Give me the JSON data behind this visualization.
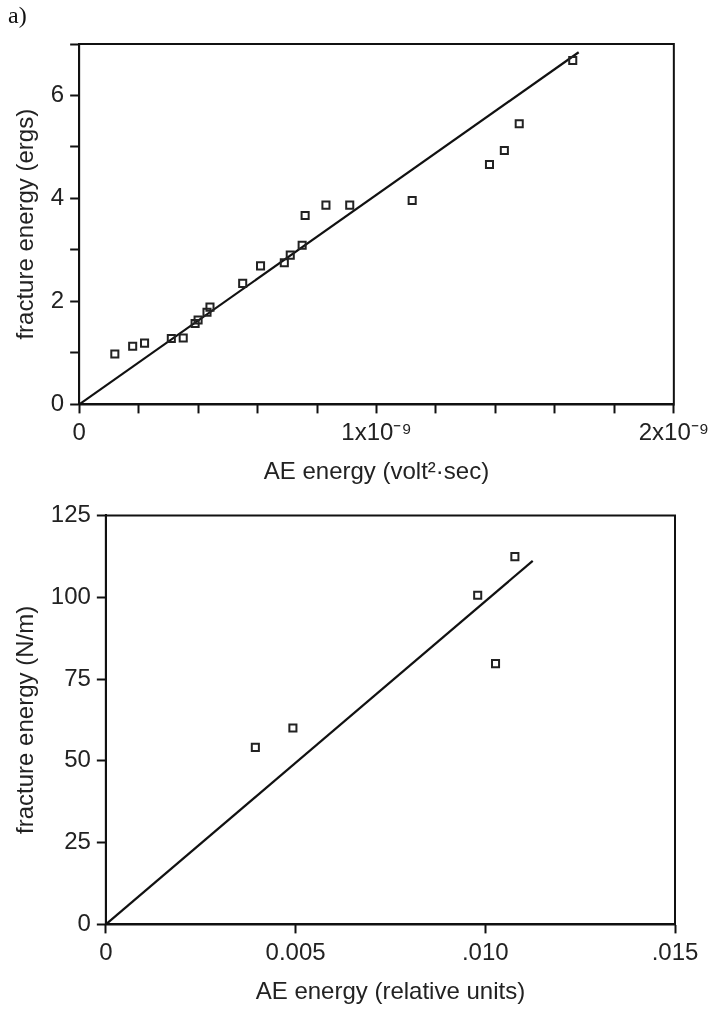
{
  "chart_data": [
    {
      "type": "scatter",
      "xlabel": "AE energy (volt²·sec)",
      "ylabel": "fracture energy (ergs)",
      "annotations": [
        "a)"
      ],
      "xlim": [
        0,
        2e-09
      ],
      "ylim": [
        0,
        7
      ],
      "xticks": [
        0,
        {
          "value": 2e-10,
          "label": null
        },
        {
          "value": 4e-10,
          "label": null
        },
        {
          "value": 6e-10,
          "label": null
        },
        {
          "value": 8e-10,
          "label": null
        },
        {
          "value": 1e-09,
          "label": "1x10⁻⁹"
        },
        {
          "value": 1.2e-09,
          "label": null
        },
        {
          "value": 1.4e-09,
          "label": null
        },
        {
          "value": 1.6e-09,
          "label": null
        },
        {
          "value": 1.8e-09,
          "label": null
        },
        {
          "value": 2e-09,
          "label": "2x10⁻⁹"
        }
      ],
      "yticks": [
        0,
        {
          "value": 1,
          "label": null
        },
        2,
        {
          "value": 3,
          "label": null
        },
        4,
        {
          "value": 5,
          "label": null
        },
        6,
        {
          "value": 7,
          "label": null
        }
      ],
      "grid": false,
      "legend": false,
      "series": [
        {
          "marker": "square",
          "color": "#222222",
          "x": [
            1.2e-10,
            1.8e-10,
            2.2e-10,
            3.1e-10,
            3.5e-10,
            3.9e-10,
            4e-10,
            4.3e-10,
            4.4e-10,
            5.5e-10,
            6.1e-10,
            6.9e-10,
            7.1e-10,
            7.5e-10,
            7.6e-10,
            8.3e-10,
            9.1e-10,
            1.12e-09,
            1.38e-09,
            1.43e-09,
            1.48e-09,
            1.66e-09
          ],
          "values": [
            0.98,
            1.13,
            1.19,
            1.28,
            1.29,
            1.57,
            1.64,
            1.79,
            1.89,
            2.35,
            2.69,
            2.75,
            2.9,
            3.09,
            3.67,
            3.87,
            3.87,
            3.96,
            4.66,
            4.93,
            5.45,
            6.68
          ]
        },
        {
          "type": "line",
          "marker": "none",
          "color": "#111111",
          "x": [
            0,
            1.68e-09
          ],
          "values": [
            0,
            6.84
          ]
        }
      ]
    },
    {
      "type": "scatter",
      "xlabel": "AE energy (relative units)",
      "ylabel": "fracture energy (N/m)",
      "xlim": [
        0,
        0.015
      ],
      "ylim": [
        0,
        125
      ],
      "xticks": [
        0,
        {
          "value": 0.005,
          "label": "0.005"
        },
        {
          "value": 0.01,
          "label": ".010"
        },
        {
          "value": 0.015,
          "label": ".015"
        }
      ],
      "yticks": [
        0,
        25,
        50,
        75,
        100,
        125
      ],
      "grid": false,
      "legend": false,
      "series": [
        {
          "marker": "square",
          "color": "#222222",
          "x": [
            0.00394,
            0.00493,
            0.0098,
            0.01027,
            0.01078
          ],
          "values": [
            54.1,
            60.0,
            100.6,
            79.7,
            112.4
          ]
        },
        {
          "type": "line",
          "marker": "none",
          "color": "#111111",
          "x": [
            0,
            0.01125
          ],
          "values": [
            0,
            111.1
          ]
        }
      ]
    }
  ]
}
